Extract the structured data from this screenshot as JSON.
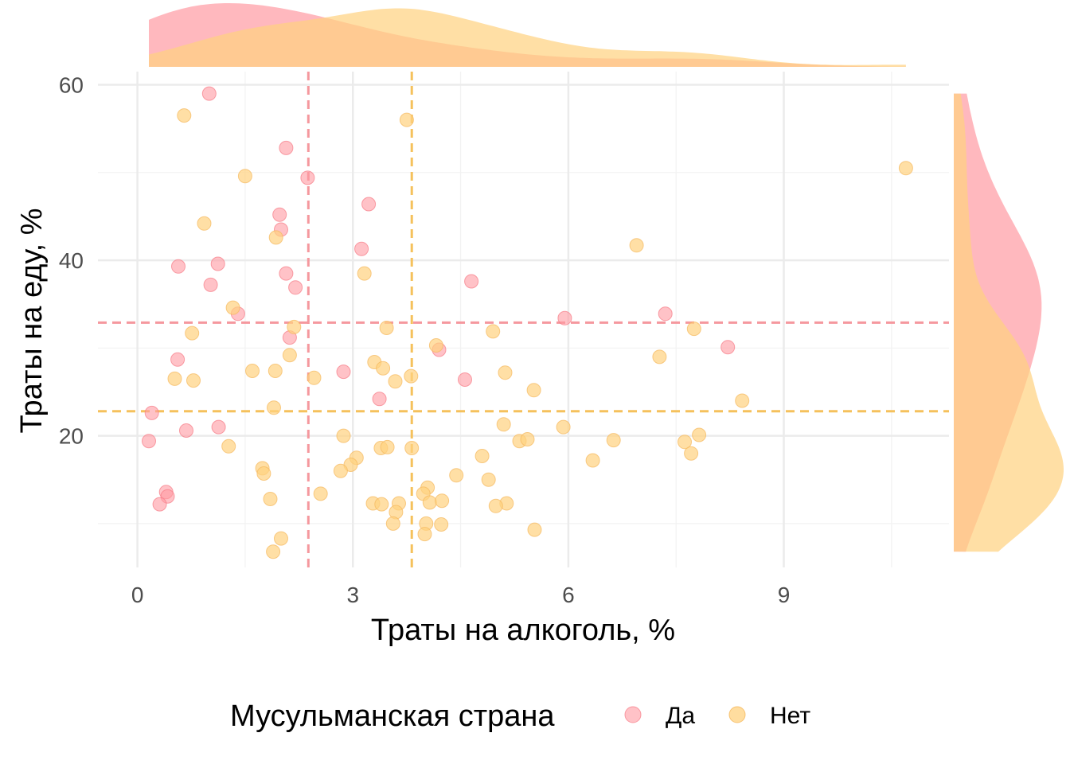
{
  "chart_data": {
    "type": "scatter",
    "xlabel": "Траты на алкоголь, %",
    "ylabel": "Траты на еду, %",
    "xlim": [
      -0.55,
      11.3
    ],
    "ylim": [
      5,
      61.5
    ],
    "x_ticks": [
      "0",
      "3",
      "6",
      "9"
    ],
    "y_ticks": [
      "20",
      "40",
      "60"
    ],
    "grid": true,
    "legend": {
      "title": "Мусульманская страна",
      "placement": "bottom",
      "entries": [
        "Да",
        "Нет"
      ]
    },
    "marginal_density": {
      "x": "top",
      "y": "right"
    },
    "series": [
      {
        "name": "Да",
        "color": "#FF9AA2",
        "mean_x": 2.38,
        "mean_y": 32.9,
        "x": [
          1.0,
          2.07,
          2.37,
          1.98,
          3.22,
          2.0,
          3.12,
          1.12,
          0.57,
          2.07,
          1.02,
          2.2,
          4.65,
          1.4,
          5.95,
          7.35,
          2.12,
          4.2,
          8.22,
          0.56,
          2.87,
          4.56,
          3.37,
          0.2,
          1.13,
          0.68,
          0.16,
          0.4,
          0.42,
          0.31
        ],
        "y": [
          59,
          52.8,
          49.4,
          45.2,
          46.4,
          43.5,
          41.3,
          39.6,
          39.3,
          38.5,
          37.2,
          36.9,
          37.6,
          33.9,
          33.4,
          33.9,
          31.2,
          29.8,
          30.1,
          28.7,
          27.3,
          26.4,
          24.2,
          22.6,
          21.0,
          20.6,
          19.4,
          13.6,
          13.1,
          12.2
        ]
      },
      {
        "name": "Нет",
        "color": "#FFD27F",
        "mean_x": 3.82,
        "mean_y": 22.8,
        "x": [
          0.65,
          3.75,
          1.5,
          10.7,
          0.93,
          1.93,
          6.95,
          3.16,
          1.33,
          2.18,
          0.76,
          3.47,
          4.95,
          7.75,
          4.16,
          2.12,
          7.27,
          3.3,
          3.42,
          1.6,
          1.92,
          0.52,
          5.12,
          0.78,
          2.46,
          3.59,
          3.81,
          5.52,
          8.42,
          1.9,
          5.1,
          5.93,
          2.87,
          6.63,
          3.39,
          3.48,
          7.62,
          7.82,
          3.82,
          1.27,
          3.05,
          5.32,
          5.43,
          4.8,
          7.71,
          6.34,
          2.97,
          1.74,
          2.83,
          1.76,
          4.44,
          4.89,
          4.04,
          2.55,
          3.98,
          1.85,
          3.28,
          3.64,
          4.07,
          4.24,
          5.14,
          4.99,
          3.4,
          3.6,
          3.56,
          4.23,
          4.02,
          5.53,
          2.0,
          1.89,
          4.0
        ],
        "y": [
          56.5,
          56.0,
          49.6,
          50.5,
          44.2,
          42.6,
          41.7,
          38.5,
          34.6,
          32.4,
          31.7,
          32.3,
          31.9,
          32.2,
          30.3,
          29.2,
          29.0,
          28.4,
          27.7,
          27.4,
          27.4,
          26.5,
          27.2,
          26.3,
          26.6,
          26.2,
          26.8,
          25.2,
          24.0,
          23.2,
          21.3,
          21.0,
          20.0,
          19.5,
          18.6,
          18.7,
          19.3,
          20.1,
          18.6,
          18.8,
          17.5,
          19.4,
          19.6,
          17.7,
          18.0,
          17.2,
          16.7,
          16.3,
          16.0,
          15.7,
          15.5,
          15.0,
          14.1,
          13.4,
          13.4,
          12.8,
          12.3,
          12.3,
          12.4,
          12.6,
          12.3,
          12.0,
          12.2,
          11.3,
          10.0,
          9.9,
          10.0,
          9.3,
          8.3,
          6.8,
          8.8
        ]
      }
    ]
  }
}
